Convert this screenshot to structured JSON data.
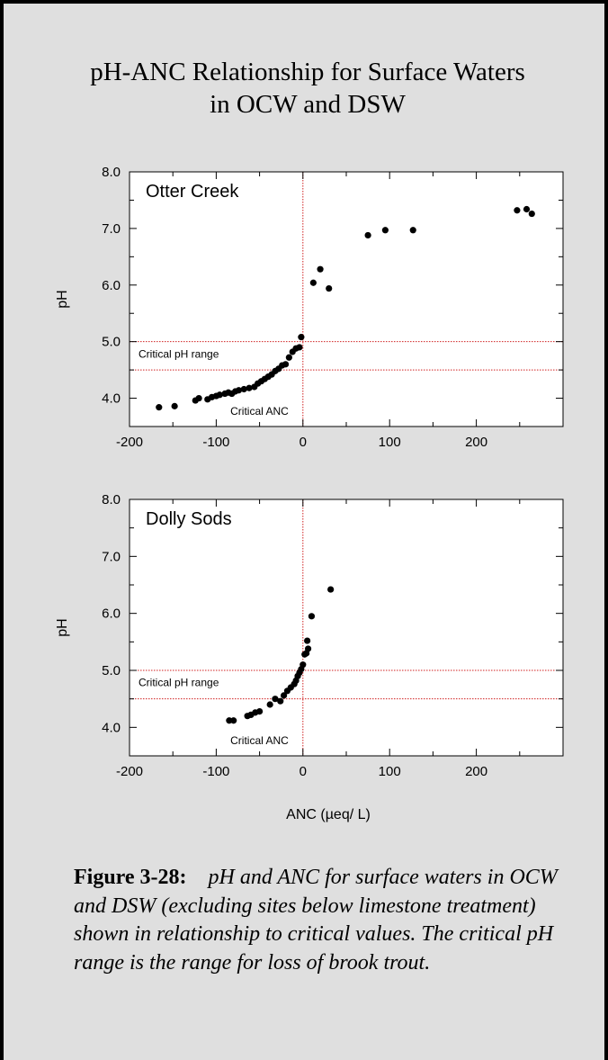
{
  "title": {
    "line1": "pH-ANC Relationship for Surface Waters",
    "line2": "in OCW and DSW"
  },
  "caption": {
    "label": "Figure 3-28:",
    "text": "pH and ANC for surface waters in OCW and DSW (excluding sites below limestone treatment) shown in relationship to critical values. The critical pH range is the range for loss of brook trout."
  },
  "chart_data": [
    {
      "type": "scatter",
      "panel_label": "Otter Creek",
      "xlabel": "",
      "ylabel": "pH",
      "xlim": [
        -200,
        300
      ],
      "ylim": [
        3.5,
        8.0
      ],
      "x_ticks": [
        "-200",
        "-100",
        "0",
        "100",
        "200"
      ],
      "y_ticks": [
        "4.0",
        "5.0",
        "6.0",
        "7.0",
        "8.0"
      ],
      "reference_lines": {
        "horizontal": [
          4.5,
          5.0
        ],
        "vertical": [
          0
        ],
        "range_label": "Critical pH range",
        "anc_label": "Critical ANC"
      },
      "grid": false,
      "points": [
        [
          -166,
          3.84
        ],
        [
          -148,
          3.86
        ],
        [
          -124,
          3.96
        ],
        [
          -120,
          4.0
        ],
        [
          -110,
          3.98
        ],
        [
          -105,
          4.02
        ],
        [
          -100,
          4.04
        ],
        [
          -96,
          4.06
        ],
        [
          -90,
          4.08
        ],
        [
          -86,
          4.1
        ],
        [
          -82,
          4.08
        ],
        [
          -78,
          4.12
        ],
        [
          -74,
          4.14
        ],
        [
          -68,
          4.16
        ],
        [
          -62,
          4.18
        ],
        [
          -56,
          4.2
        ],
        [
          -52,
          4.26
        ],
        [
          -48,
          4.3
        ],
        [
          -44,
          4.34
        ],
        [
          -40,
          4.38
        ],
        [
          -36,
          4.42
        ],
        [
          -32,
          4.48
        ],
        [
          -28,
          4.52
        ],
        [
          -24,
          4.58
        ],
        [
          -20,
          4.6
        ],
        [
          -16,
          4.72
        ],
        [
          -12,
          4.82
        ],
        [
          -8,
          4.88
        ],
        [
          -4,
          4.9
        ],
        [
          -2,
          5.08
        ],
        [
          12,
          6.04
        ],
        [
          20,
          6.28
        ],
        [
          30,
          5.94
        ],
        [
          75,
          6.88
        ],
        [
          95,
          6.97
        ],
        [
          127,
          6.97
        ],
        [
          247,
          7.32
        ],
        [
          258,
          7.34
        ],
        [
          264,
          7.26
        ]
      ]
    },
    {
      "type": "scatter",
      "panel_label": "Dolly Sods",
      "xlabel": "ANC (µeq/ L)",
      "ylabel": "pH",
      "xlim": [
        -200,
        300
      ],
      "ylim": [
        3.5,
        8.0
      ],
      "x_ticks": [
        "-200",
        "-100",
        "0",
        "100",
        "200"
      ],
      "y_ticks": [
        "4.0",
        "5.0",
        "6.0",
        "7.0",
        "8.0"
      ],
      "reference_lines": {
        "horizontal": [
          4.5,
          5.0
        ],
        "vertical": [
          0
        ],
        "range_label": "Critical pH range",
        "anc_label": "Critical ANC"
      },
      "grid": false,
      "points": [
        [
          -85,
          4.12
        ],
        [
          -80,
          4.12
        ],
        [
          -64,
          4.2
        ],
        [
          -60,
          4.22
        ],
        [
          -55,
          4.26
        ],
        [
          -50,
          4.28
        ],
        [
          -38,
          4.4
        ],
        [
          -32,
          4.5
        ],
        [
          -26,
          4.46
        ],
        [
          -22,
          4.56
        ],
        [
          -18,
          4.64
        ],
        [
          -14,
          4.7
        ],
        [
          -10,
          4.76
        ],
        [
          -8,
          4.82
        ],
        [
          -6,
          4.9
        ],
        [
          -4,
          4.96
        ],
        [
          -2,
          5.02
        ],
        [
          0,
          5.1
        ],
        [
          2,
          5.28
        ],
        [
          4,
          5.3
        ],
        [
          6,
          5.38
        ],
        [
          5,
          5.52
        ],
        [
          10,
          5.95
        ],
        [
          32,
          6.42
        ]
      ]
    }
  ]
}
